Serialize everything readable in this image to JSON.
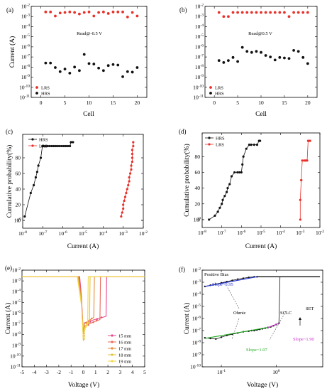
{
  "chart_data": [
    {
      "panel": "(a)",
      "type": "scatter",
      "xlabel": "Cell",
      "ylabel": "Current (A)",
      "xlim": [
        -2,
        22
      ],
      "ylim": [
        -11,
        -2
      ],
      "yscale": "log",
      "xticks": [
        "0",
        "5",
        "10",
        "15",
        "20"
      ],
      "yticks": [
        "10-11",
        "10-10",
        "10-9",
        "10-8",
        "10-7",
        "10-6",
        "10-5",
        "10-4",
        "10-3",
        "10-2"
      ],
      "annotation": "Read@-0.5 V",
      "legend": [
        "LRS",
        "HRS"
      ],
      "series": [
        {
          "name": "LRS",
          "color": "#e8312a",
          "x": [
            1,
            2,
            3,
            4,
            5,
            6,
            7,
            8,
            9,
            10,
            11,
            12,
            13,
            14,
            15,
            16,
            17,
            18,
            19,
            20
          ],
          "y": [
            -2.55,
            -2.55,
            -2.95,
            -2.65,
            -2.6,
            -2.55,
            -2.6,
            -2.75,
            -2.6,
            -2.55,
            -2.95,
            -2.6,
            -2.55,
            -2.7,
            -2.55,
            -2.55,
            -2.55,
            -3.05,
            -2.6,
            -2.95
          ]
        },
        {
          "name": "HRS",
          "color": "#111111",
          "x": [
            1,
            2,
            3,
            4,
            5,
            6,
            7,
            8,
            9,
            10,
            11,
            12,
            13,
            14,
            15,
            16,
            17,
            18,
            19,
            20
          ],
          "y": [
            -7.6,
            -7.6,
            -8.05,
            -8.45,
            -8.2,
            -8.6,
            -8.0,
            -8.35,
            -6.75,
            -7.65,
            -7.7,
            -8.1,
            -8.35,
            -7.85,
            -7.75,
            -7.8,
            -8.95,
            -8.45,
            -8.5,
            -8.05
          ]
        }
      ]
    },
    {
      "panel": "(b)",
      "type": "scatter",
      "xlabel": "Cell",
      "ylabel": "",
      "xlim": [
        -2,
        22
      ],
      "ylim": [
        -11,
        -2
      ],
      "yscale": "log",
      "xticks": [
        "0",
        "5",
        "10",
        "15",
        "20"
      ],
      "yticks": [
        "10-11",
        "10-10",
        "10-9",
        "10-8",
        "10-7",
        "10-6",
        "10-5",
        "10-4",
        "10-3",
        "10-2"
      ],
      "annotation": "Read@0.5 V",
      "legend": [
        "LRS",
        "HRS"
      ],
      "series": [
        {
          "name": "LRS",
          "color": "#e8312a",
          "x": [
            1,
            2,
            3,
            4,
            5,
            6,
            7,
            8,
            9,
            10,
            11,
            12,
            13,
            14,
            15,
            16,
            17,
            18,
            19,
            20
          ],
          "y": [
            -2.6,
            -3.0,
            -3.0,
            -2.6,
            -2.6,
            -2.6,
            -2.6,
            -2.6,
            -2.6,
            -2.6,
            -2.6,
            -2.6,
            -2.6,
            -2.6,
            -2.6,
            -3.0,
            -2.6,
            -2.6,
            -2.6,
            -2.6
          ]
        },
        {
          "name": "HRS",
          "color": "#111111",
          "x": [
            1,
            2,
            3,
            4,
            5,
            6,
            7,
            8,
            9,
            10,
            11,
            12,
            13,
            14,
            15,
            16,
            17,
            18,
            19,
            20
          ],
          "y": [
            -7.35,
            -7.55,
            -7.35,
            -7.05,
            -7.45,
            -6.05,
            -6.45,
            -6.55,
            -6.45,
            -6.55,
            -6.85,
            -7.0,
            -7.3,
            -7.05,
            -7.1,
            -7.15,
            -6.35,
            -6.45,
            -7.05,
            -7.65
          ]
        }
      ]
    },
    {
      "panel": "(c)",
      "type": "line",
      "xlabel": "Current (A)",
      "ylabel": "Cumulative probability(%)",
      "xlim": [
        -8,
        -2
      ],
      "ylim": [
        -10,
        110
      ],
      "xscale": "log",
      "xticks": [
        "10-8",
        "10-7",
        "10-6",
        "10-5",
        "10-4",
        "10-3",
        "10-2"
      ],
      "yticks": [
        "0",
        "20",
        "40",
        "60",
        "80",
        "100"
      ],
      "legend": [
        "HRS",
        "LRS"
      ],
      "series": [
        {
          "name": "HRS",
          "color": "#111111",
          "x": [
            -7.9,
            -7.6,
            -7.45,
            -7.35,
            -7.28,
            -7.22,
            -7.1,
            -7.02,
            -6.95,
            -6.85,
            -6.75,
            -6.65,
            -6.55,
            -6.45,
            -6.35,
            -6.25,
            -6.15,
            -6.05,
            -5.95,
            -5.85,
            -5.75,
            -5.65,
            -5.6,
            -5.5
          ],
          "y": [
            5,
            35,
            45,
            55,
            62,
            70,
            80,
            95,
            95,
            95,
            95,
            95,
            95,
            95,
            95,
            95,
            95,
            95,
            95,
            95,
            95,
            95,
            100,
            100
          ]
        },
        {
          "name": "LRS",
          "color": "#e8312a",
          "x": [
            -3.1,
            -3.05,
            -3.0,
            -3.0,
            -2.95,
            -2.9,
            -2.85,
            -2.8,
            -2.75,
            -2.7,
            -2.7,
            -2.65,
            -2.6,
            -2.6,
            -2.55,
            -2.55,
            -2.55,
            -2.55,
            -2.5,
            -2.5
          ],
          "y": [
            5,
            10,
            15,
            20,
            25,
            30,
            35,
            40,
            45,
            50,
            55,
            60,
            65,
            70,
            75,
            80,
            85,
            90,
            95,
            100
          ]
        }
      ]
    },
    {
      "panel": "(d)",
      "type": "line",
      "xlabel": "Current (A)",
      "ylabel": "Cumulative probability(%)",
      "xlim": [
        -8,
        -2
      ],
      "ylim": [
        -10,
        110
      ],
      "xscale": "log",
      "xticks": [
        "10-8",
        "10-7",
        "10-6",
        "10-5",
        "10-4",
        "10-3",
        "10-2"
      ],
      "yticks": [
        "0",
        "20",
        "40",
        "60",
        "80",
        "100"
      ],
      "legend": [
        "HRS",
        "LRS"
      ],
      "series": [
        {
          "name": "HRS",
          "color": "#111111",
          "x": [
            -7.65,
            -7.35,
            -7.2,
            -7.1,
            -7.0,
            -6.95,
            -6.85,
            -6.75,
            -6.7,
            -6.6,
            -6.5,
            -6.35,
            -6.2,
            -6.1,
            -6.0,
            -5.95,
            -5.9,
            -5.75,
            -5.6,
            -5.5,
            -5.35,
            -5.2,
            -5.1,
            -5.05
          ],
          "y": [
            0,
            5,
            10,
            15,
            20,
            25,
            30,
            35,
            40,
            45,
            55,
            60,
            60,
            60,
            60,
            70,
            80,
            90,
            95,
            95,
            95,
            95,
            100,
            100
          ]
        },
        {
          "name": "LRS",
          "color": "#e8312a",
          "x": [
            -3.0,
            -3.0,
            -2.95,
            -2.95,
            -2.9,
            -2.8,
            -2.75,
            -2.7,
            -2.65,
            -2.6,
            -2.55,
            -2.5
          ],
          "y": [
            0,
            25,
            50,
            50,
            75,
            75,
            75,
            75,
            75,
            100,
            100,
            100
          ]
        }
      ]
    },
    {
      "panel": "(e)",
      "type": "line",
      "xlabel": "Voltage (V)",
      "ylabel": "Current (A)",
      "xlim": [
        -5,
        5
      ],
      "ylim": [
        -11,
        -2
      ],
      "yscale": "log",
      "xticks": [
        "-5",
        "-4",
        "-3",
        "-2",
        "-1",
        "0",
        "1",
        "2",
        "3",
        "4",
        "5"
      ],
      "yticks": [
        "10-11",
        "10-10",
        "10-9",
        "10-8",
        "10-7",
        "10-6",
        "10-5",
        "10-4",
        "10-3",
        "10-2"
      ],
      "legend": [
        "15 mm",
        "16 mm",
        "17 mm",
        "18 mm",
        "19 mm"
      ],
      "series": [
        {
          "name": "15 mm",
          "color": "#e8488a",
          "set_v": 1.85,
          "low": -6.9,
          "dip": -7.9
        },
        {
          "name": "16 mm",
          "color": "#e86a5a",
          "set_v": 1.35,
          "low": -7.2,
          "dip": -8.3
        },
        {
          "name": "17 mm",
          "color": "#e88a3a",
          "set_v": 0.85,
          "low": -7.0,
          "dip": -8.1
        },
        {
          "name": "18 mm",
          "color": "#e2c33a",
          "set_v": 0.5,
          "low": -7.4,
          "dip": -8.6
        },
        {
          "name": "19 mm",
          "color": "#f2d64a",
          "set_v": 0.35,
          "low": -7.6,
          "dip": -8.4
        }
      ]
    },
    {
      "panel": "(f)",
      "type": "line",
      "xlabel": "Voltage (V)",
      "ylabel": "Current (A)",
      "xlim": [
        -1.35,
        0.85
      ],
      "ylim": [
        -10,
        -2
      ],
      "xscale": "log",
      "yscale": "log",
      "xticks": [
        "10-1",
        "100"
      ],
      "yticks": [
        "10-10",
        "10-9",
        "10-8",
        "10-7",
        "10-6",
        "10-5",
        "10-4",
        "10-3",
        "10-2"
      ],
      "title": "Positive Bias",
      "annotations": [
        "Slope~0.95",
        "Ohmic",
        "SCLC",
        "SET",
        "Slope~1.07",
        "Slope~1.90"
      ],
      "series": [
        {
          "name": "",
          "color": "#111111",
          "x": [
            -1.3,
            -1.2,
            -1.1,
            -1.0,
            -0.9,
            -0.8,
            -0.7,
            -0.6,
            -0.5,
            -0.45,
            -0.4,
            -0.35,
            -0.3,
            -0.25,
            -0.2,
            -0.15,
            -0.1,
            -0.05,
            0.0,
            0.05
          ],
          "y": [
            -7.6,
            -7.65,
            -7.7,
            -7.55,
            -7.4,
            -7.3,
            -7.2,
            -7.1,
            -7.05,
            -7.0,
            -7.0,
            -6.95,
            -6.9,
            -6.85,
            -6.8,
            -6.75,
            -6.7,
            -6.6,
            -6.5,
            -6.4
          ]
        },
        {
          "name": "",
          "color": "#111111",
          "x": [
            -1.3,
            -1.2,
            -1.1,
            -1.0,
            -0.9,
            -0.8,
            -0.7,
            -0.6,
            -0.5,
            -0.4,
            -0.35
          ],
          "y": [
            -3.35,
            -3.25,
            -3.15,
            -3.05,
            -2.95,
            -2.85,
            -2.75,
            -2.67,
            -2.6,
            -2.55,
            -2.55
          ]
        }
      ],
      "fit_lines": [
        {
          "label": "Slope~0.95",
          "color": "#2233cc",
          "x": [
            -1.3,
            -0.35
          ],
          "y": [
            -3.35,
            -2.55
          ]
        },
        {
          "label": "Slope~1.07",
          "color": "#22aa22",
          "x": [
            -1.3,
            -0.1
          ],
          "y": [
            -7.65,
            -6.7
          ]
        },
        {
          "label": "Slope~1.90",
          "color": "#cc33cc",
          "x": [
            -0.15,
            0.05
          ],
          "y": [
            -6.75,
            -6.4
          ]
        }
      ]
    }
  ],
  "panel_labels": {
    "a": "(a)",
    "b": "(b)",
    "c": "(c)",
    "d": "(d)",
    "e": "(e)",
    "f": "(f)"
  }
}
